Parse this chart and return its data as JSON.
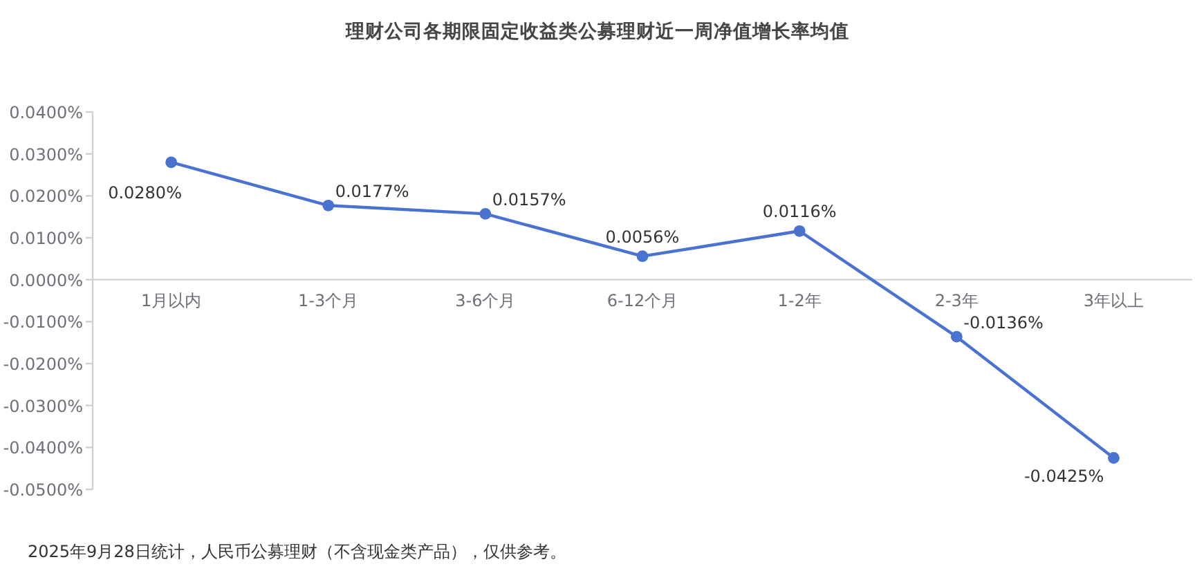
{
  "chart_data": {
    "type": "line",
    "title": "理财公司各期限固定收益类公募理财近一周净值增长率均值",
    "categories": [
      "1月以内",
      "1-3个月",
      "3-6个月",
      "6-12个月",
      "1-2年",
      "2-3年",
      "3年以上"
    ],
    "series": [
      {
        "color": "#4a72d0",
        "values": [
          0.028,
          0.0177,
          0.0157,
          0.0056,
          0.0116,
          -0.0136,
          -0.0425
        ],
        "value_labels": [
          "0.0280%",
          "0.0177%",
          "0.0157%",
          "0.0056%",
          "0.0116%",
          "-0.0136%",
          "-0.0425%"
        ]
      }
    ],
    "ylim": [
      -0.05,
      0.04
    ],
    "yticks": [
      {
        "value": 0.04,
        "label": "0.0400%"
      },
      {
        "value": 0.03,
        "label": "0.0300%"
      },
      {
        "value": 0.02,
        "label": "0.0200%"
      },
      {
        "value": 0.01,
        "label": "0.0100%"
      },
      {
        "value": 0,
        "label": "0.0000%"
      },
      {
        "value": -0.01,
        "label": "-0.0100%"
      },
      {
        "value": -0.02,
        "label": "-0.0200%"
      },
      {
        "value": -0.03,
        "label": "-0.0300%"
      },
      {
        "value": -0.04,
        "label": "-0.0400%"
      },
      {
        "value": -0.05,
        "label": "-0.0500%"
      }
    ],
    "marker": "circle",
    "line_style": "solid",
    "grid": false,
    "annotations": [
      "2025年9月28日统计，人民币公募理财（不含现金类产品），仅供参考。"
    ]
  }
}
